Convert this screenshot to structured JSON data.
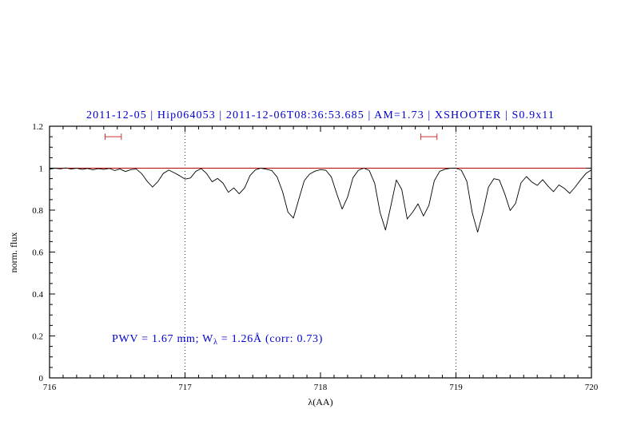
{
  "annotation": {
    "prefix": "PWV = 1.67 mm; W",
    "sub": "λ",
    "suffix": " = 1.26Å (corr: 0.73)"
  },
  "colors": {
    "title": "#0000cd",
    "annotation": "#0000cd",
    "continuum": "#bb0000",
    "marker": "#cc3333",
    "spectrum": "#000000",
    "vline": "#000000",
    "frame": "#000000"
  },
  "chart_data": {
    "type": "line",
    "title": "2011-12-05 | Hip064053 | 2011-12-06T08:36:53.685 | AM=1.73 | XSHOOTER | S0.9x11",
    "xlabel": "λ(AA)",
    "ylabel": "norm. flux",
    "xlim": [
      716,
      720
    ],
    "ylim": [
      0,
      1.2
    ],
    "grid": false,
    "legend": "none",
    "x_major_ticks": [
      716,
      717,
      718,
      719,
      720
    ],
    "x_tick_labels": [
      "716",
      "717",
      "718",
      "719",
      "720"
    ],
    "x_minor_step": 0.1,
    "y_major_ticks": [
      0,
      0.2,
      0.4,
      0.6,
      0.8,
      1,
      1.2
    ],
    "y_tick_labels": [
      "0",
      "0.2",
      "0.4",
      "0.6",
      "0.8",
      "1",
      "1.2"
    ],
    "y_minor_step": 0.05,
    "continuum_y": 1.0,
    "vlines": [
      717,
      719
    ],
    "range_markers": [
      {
        "x1": 716.41,
        "x2": 716.53,
        "y": 1.15
      },
      {
        "x1": 718.74,
        "x2": 718.86,
        "y": 1.15
      }
    ],
    "series": [
      {
        "name": "telluric-spectrum",
        "points": [
          [
            716.0,
            0.995
          ],
          [
            716.04,
            1.0
          ],
          [
            716.08,
            0.997
          ],
          [
            716.12,
            1.001
          ],
          [
            716.16,
            0.996
          ],
          [
            716.2,
            1.0
          ],
          [
            716.24,
            0.994
          ],
          [
            716.28,
            0.999
          ],
          [
            716.32,
            0.992
          ],
          [
            716.36,
            0.998
          ],
          [
            716.4,
            0.994
          ],
          [
            716.44,
            0.999
          ],
          [
            716.48,
            0.989
          ],
          [
            716.52,
            0.996
          ],
          [
            716.56,
            0.984
          ],
          [
            716.6,
            0.993
          ],
          [
            716.64,
            0.996
          ],
          [
            716.68,
            0.974
          ],
          [
            716.72,
            0.938
          ],
          [
            716.76,
            0.91
          ],
          [
            716.8,
            0.936
          ],
          [
            716.84,
            0.975
          ],
          [
            716.88,
            0.991
          ],
          [
            716.92,
            0.978
          ],
          [
            716.96,
            0.964
          ],
          [
            717.0,
            0.948
          ],
          [
            717.04,
            0.953
          ],
          [
            717.08,
            0.985
          ],
          [
            717.12,
            0.998
          ],
          [
            717.16,
            0.974
          ],
          [
            717.2,
            0.935
          ],
          [
            717.24,
            0.951
          ],
          [
            717.28,
            0.929
          ],
          [
            717.32,
            0.885
          ],
          [
            717.36,
            0.906
          ],
          [
            717.4,
            0.878
          ],
          [
            717.44,
            0.906
          ],
          [
            717.48,
            0.965
          ],
          [
            717.52,
            0.992
          ],
          [
            717.56,
            1.0
          ],
          [
            717.6,
            0.995
          ],
          [
            717.64,
            0.989
          ],
          [
            717.68,
            0.958
          ],
          [
            717.72,
            0.888
          ],
          [
            717.76,
            0.79
          ],
          [
            717.8,
            0.762
          ],
          [
            717.84,
            0.852
          ],
          [
            717.88,
            0.94
          ],
          [
            717.92,
            0.972
          ],
          [
            717.96,
            0.986
          ],
          [
            718.0,
            0.993
          ],
          [
            718.04,
            0.99
          ],
          [
            718.08,
            0.958
          ],
          [
            718.12,
            0.878
          ],
          [
            718.16,
            0.805
          ],
          [
            718.2,
            0.862
          ],
          [
            718.24,
            0.955
          ],
          [
            718.28,
            0.99
          ],
          [
            718.32,
            1.0
          ],
          [
            718.36,
            0.989
          ],
          [
            718.4,
            0.928
          ],
          [
            718.44,
            0.788
          ],
          [
            718.48,
            0.705
          ],
          [
            718.52,
            0.822
          ],
          [
            718.56,
            0.944
          ],
          [
            718.6,
            0.898
          ],
          [
            718.64,
            0.758
          ],
          [
            718.68,
            0.79
          ],
          [
            718.72,
            0.83
          ],
          [
            718.76,
            0.772
          ],
          [
            718.8,
            0.822
          ],
          [
            718.84,
            0.94
          ],
          [
            718.88,
            0.985
          ],
          [
            718.92,
            0.995
          ],
          [
            718.96,
            1.0
          ],
          [
            719.0,
            1.0
          ],
          [
            719.04,
            0.99
          ],
          [
            719.08,
            0.938
          ],
          [
            719.12,
            0.788
          ],
          [
            719.16,
            0.695
          ],
          [
            719.2,
            0.792
          ],
          [
            719.24,
            0.91
          ],
          [
            719.28,
            0.95
          ],
          [
            719.32,
            0.944
          ],
          [
            719.36,
            0.878
          ],
          [
            719.4,
            0.798
          ],
          [
            719.44,
            0.832
          ],
          [
            719.48,
            0.93
          ],
          [
            719.52,
            0.96
          ],
          [
            719.56,
            0.934
          ],
          [
            719.6,
            0.918
          ],
          [
            719.64,
            0.945
          ],
          [
            719.68,
            0.914
          ],
          [
            719.72,
            0.888
          ],
          [
            719.76,
            0.92
          ],
          [
            719.8,
            0.904
          ],
          [
            719.84,
            0.88
          ],
          [
            719.88,
            0.91
          ],
          [
            719.92,
            0.944
          ],
          [
            719.96,
            0.975
          ],
          [
            720.0,
            0.992
          ]
        ]
      }
    ]
  }
}
